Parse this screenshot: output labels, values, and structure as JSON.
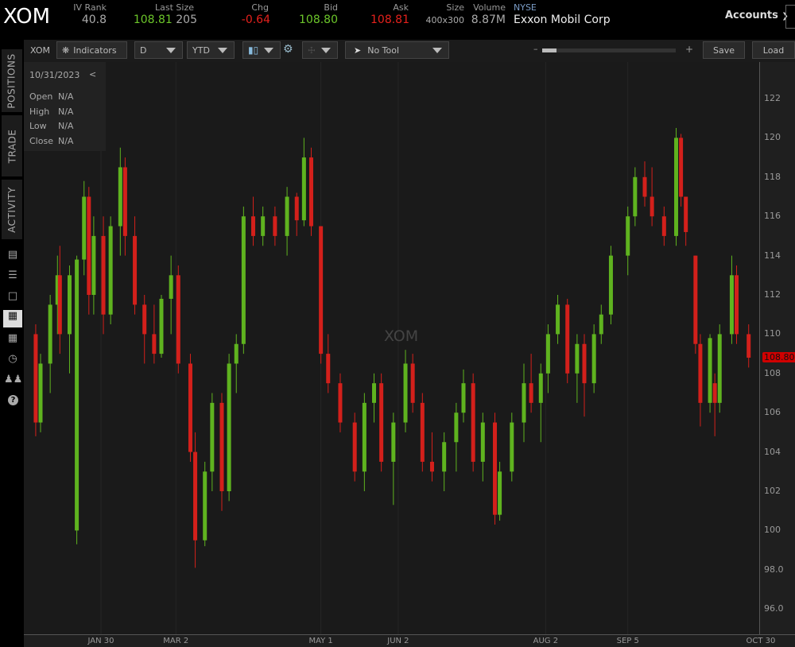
{
  "header": {
    "symbol": "XOM",
    "iv_rank_label": "IV Rank",
    "iv_rank": "40.8",
    "last_size_label": "Last Size",
    "last": "108.81",
    "size_last": "205",
    "chg_label": "Chg",
    "chg": "-0.64",
    "bid_label": "Bid",
    "bid": "108.80",
    "ask_label": "Ask",
    "ask": "108.81",
    "size_label": "Size",
    "size": "400x300",
    "volume_label": "Volume",
    "volume": "8.87M",
    "exchange": "NYSE",
    "company": "Exxon Mobil Corp",
    "accounts": "Accounts"
  },
  "toolbar": {
    "symbol": "XOM",
    "indicators": "Indicators",
    "aggregation": "D",
    "range": "YTD",
    "tool": "No Tool",
    "zoom_minus": "–",
    "zoom_plus": "+",
    "save": "Save",
    "load": "Load",
    "zoom_level": 0.05
  },
  "sidebar": {
    "tabs": [
      "POSITIONS",
      "TRADE",
      "ACTIVITY"
    ],
    "icons": [
      "chart-report-icon",
      "list-icon",
      "square-icon",
      "charts-icon",
      "grid-icon",
      "clock-icon",
      "people-icon",
      "help-icon"
    ]
  },
  "info": {
    "date": "10/31/2023",
    "collapse": "<",
    "rows": [
      {
        "k": "Open",
        "v": "N/A"
      },
      {
        "k": "High",
        "v": "N/A"
      },
      {
        "k": "Low",
        "v": "N/A"
      },
      {
        "k": "Close",
        "v": "N/A"
      }
    ]
  },
  "colors": {
    "up": "#5fb31f",
    "down": "#d3201b",
    "last_price_bg": "#d00000",
    "background": "#1a1a1a"
  },
  "chart_data": {
    "type": "candlestick",
    "watermark": "XOM",
    "last_price": "108.80",
    "ylim": [
      94.6,
      123.8
    ],
    "y_ticks": [
      "122",
      "120",
      "118",
      "116",
      "114",
      "112",
      "110",
      "108",
      "106",
      "104",
      "102",
      "100",
      "98.0",
      "96.0"
    ],
    "x_ticks": [
      {
        "label": "JAN 30",
        "date": "2023-01-30"
      },
      {
        "label": "MAR 2",
        "date": "2023-03-02"
      },
      {
        "label": "MAY 1",
        "date": "2023-05-01"
      },
      {
        "label": "JUN 2",
        "date": "2023-06-02"
      },
      {
        "label": "AUG 2",
        "date": "2023-08-02"
      },
      {
        "label": "SEP 5",
        "date": "2023-09-05"
      },
      {
        "label": "OCT 30",
        "date": "2023-10-30"
      }
    ],
    "candles": [
      [
        "2023-01-03",
        110,
        110.5,
        104.8,
        105.5
      ],
      [
        "2023-01-05",
        105.5,
        109,
        105,
        108.5
      ],
      [
        "2023-01-09",
        108.5,
        112,
        107,
        111.5
      ],
      [
        "2023-01-12",
        111.5,
        114,
        110,
        113
      ],
      [
        "2023-01-13",
        113,
        114.5,
        109,
        110
      ],
      [
        "2023-01-17",
        110,
        113.5,
        108,
        113
      ],
      [
        "2023-01-20",
        100,
        114,
        99.3,
        113.8
      ],
      [
        "2023-01-23",
        113.8,
        117.8,
        113,
        117
      ],
      [
        "2023-01-25",
        117,
        117.5,
        111,
        112
      ],
      [
        "2023-01-27",
        112,
        116,
        111,
        115
      ],
      [
        "2023-01-31",
        115,
        116,
        110,
        111
      ],
      [
        "2023-02-03",
        111,
        116,
        110.5,
        115.5
      ],
      [
        "2023-02-07",
        115.5,
        119.5,
        114,
        118.5
      ],
      [
        "2023-02-09",
        118.5,
        119,
        114,
        115
      ],
      [
        "2023-02-13",
        115,
        116,
        111,
        111.5
      ],
      [
        "2023-02-17",
        111.5,
        112,
        108.5,
        110
      ],
      [
        "2023-02-21",
        110,
        111.5,
        108.5,
        109
      ],
      [
        "2023-02-24",
        109,
        112,
        108.8,
        111.8
      ],
      [
        "2023-02-28",
        111.8,
        114,
        110,
        113
      ],
      [
        "2023-03-03",
        113,
        113.5,
        108,
        108.5
      ],
      [
        "2023-03-08",
        108.5,
        109,
        103.5,
        104
      ],
      [
        "2023-03-10",
        104,
        105,
        98.1,
        99.5
      ],
      [
        "2023-03-14",
        99.5,
        103.5,
        99.2,
        103
      ],
      [
        "2023-03-17",
        103,
        107,
        102,
        106.5
      ],
      [
        "2023-03-21",
        106.5,
        107,
        101,
        102
      ],
      [
        "2023-03-24",
        102,
        109,
        101.5,
        108.5
      ],
      [
        "2023-03-27",
        108.5,
        110,
        107,
        109.5
      ],
      [
        "2023-03-30",
        109.5,
        116.5,
        109,
        116
      ],
      [
        "2023-04-03",
        116,
        117,
        114.5,
        115
      ],
      [
        "2023-04-07",
        115,
        116.5,
        114.5,
        116
      ],
      [
        "2023-04-12",
        116,
        116.5,
        114.5,
        115
      ],
      [
        "2023-04-17",
        115,
        117.5,
        114,
        117
      ],
      [
        "2023-04-21",
        117,
        117.2,
        115,
        115.8
      ],
      [
        "2023-04-24",
        115.8,
        120,
        115.5,
        119
      ],
      [
        "2023-04-27",
        119,
        119.5,
        115,
        115.5
      ],
      [
        "2023-05-01",
        115.5,
        115.5,
        108.5,
        109
      ],
      [
        "2023-05-04",
        109,
        110,
        107,
        107.5
      ],
      [
        "2023-05-09",
        107.5,
        108,
        105,
        105.5
      ],
      [
        "2023-05-15",
        105.5,
        106,
        102.5,
        103
      ],
      [
        "2023-05-19",
        103,
        107,
        102,
        106.5
      ],
      [
        "2023-05-23",
        106.5,
        108,
        105.5,
        107.5
      ],
      [
        "2023-05-26",
        107.5,
        108,
        103,
        103.5
      ],
      [
        "2023-05-31",
        103.5,
        106,
        101.3,
        105.5
      ],
      [
        "2023-06-05",
        105.5,
        109.2,
        105,
        108.5
      ],
      [
        "2023-06-08",
        108.5,
        109,
        106,
        106.5
      ],
      [
        "2023-06-12",
        106.5,
        107,
        103,
        103.5
      ],
      [
        "2023-06-16",
        103.5,
        105,
        102.5,
        103
      ],
      [
        "2023-06-21",
        103,
        105,
        102,
        104.5
      ],
      [
        "2023-06-26",
        104.5,
        106.5,
        103,
        106
      ],
      [
        "2023-06-29",
        106,
        108.2,
        105.5,
        107.5
      ],
      [
        "2023-07-03",
        107.5,
        108,
        103,
        103.5
      ],
      [
        "2023-07-07",
        103.5,
        106,
        102.5,
        105.5
      ],
      [
        "2023-07-12",
        105.5,
        106,
        100.3,
        100.8
      ],
      [
        "2023-07-14",
        100.8,
        103.5,
        100.5,
        103
      ],
      [
        "2023-07-19",
        103,
        106,
        102.5,
        105.5
      ],
      [
        "2023-07-24",
        105.5,
        108.5,
        104.5,
        107.5
      ],
      [
        "2023-07-27",
        107.5,
        109,
        106,
        106.5
      ],
      [
        "2023-07-31",
        106.5,
        108.5,
        104.5,
        108
      ],
      [
        "2023-08-03",
        108,
        110.5,
        107,
        110
      ],
      [
        "2023-08-07",
        110,
        112,
        109.5,
        111.5
      ],
      [
        "2023-08-11",
        111.5,
        111.8,
        107.5,
        108
      ],
      [
        "2023-08-15",
        108,
        110,
        106.5,
        109.5
      ],
      [
        "2023-08-18",
        109.5,
        110,
        105.8,
        107.5
      ],
      [
        "2023-08-22",
        107.5,
        110.5,
        107,
        110
      ],
      [
        "2023-08-25",
        110,
        111.5,
        109.5,
        111
      ],
      [
        "2023-08-29",
        111,
        114.5,
        110.5,
        114
      ],
      [
        "2023-09-05",
        114,
        116.5,
        113,
        116
      ],
      [
        "2023-09-08",
        116,
        118.5,
        115.5,
        118
      ],
      [
        "2023-09-12",
        118,
        118.8,
        116.5,
        117
      ],
      [
        "2023-09-15",
        117,
        118.5,
        115.5,
        116
      ],
      [
        "2023-09-20",
        116,
        116.5,
        114.5,
        115
      ],
      [
        "2023-09-25",
        115,
        120.5,
        114.5,
        120
      ],
      [
        "2023-09-27",
        120,
        120.2,
        116.5,
        117
      ],
      [
        "2023-09-29",
        117,
        117,
        114.5,
        115.2
      ],
      [
        "2023-10-03",
        114,
        114,
        109,
        109.5
      ],
      [
        "2023-10-05",
        109.5,
        110,
        105.3,
        106.5
      ],
      [
        "2023-10-09",
        106.5,
        110,
        106,
        109.8
      ],
      [
        "2023-10-11",
        107.5,
        108,
        104.8,
        106.5
      ],
      [
        "2023-10-13",
        106.5,
        110.5,
        106,
        110
      ],
      [
        "2023-10-18",
        110,
        114,
        109.5,
        113
      ],
      [
        "2023-10-20",
        113,
        113.5,
        109.5,
        110
      ],
      [
        "2023-10-25",
        110,
        110.5,
        108.3,
        108.8
      ]
    ]
  }
}
